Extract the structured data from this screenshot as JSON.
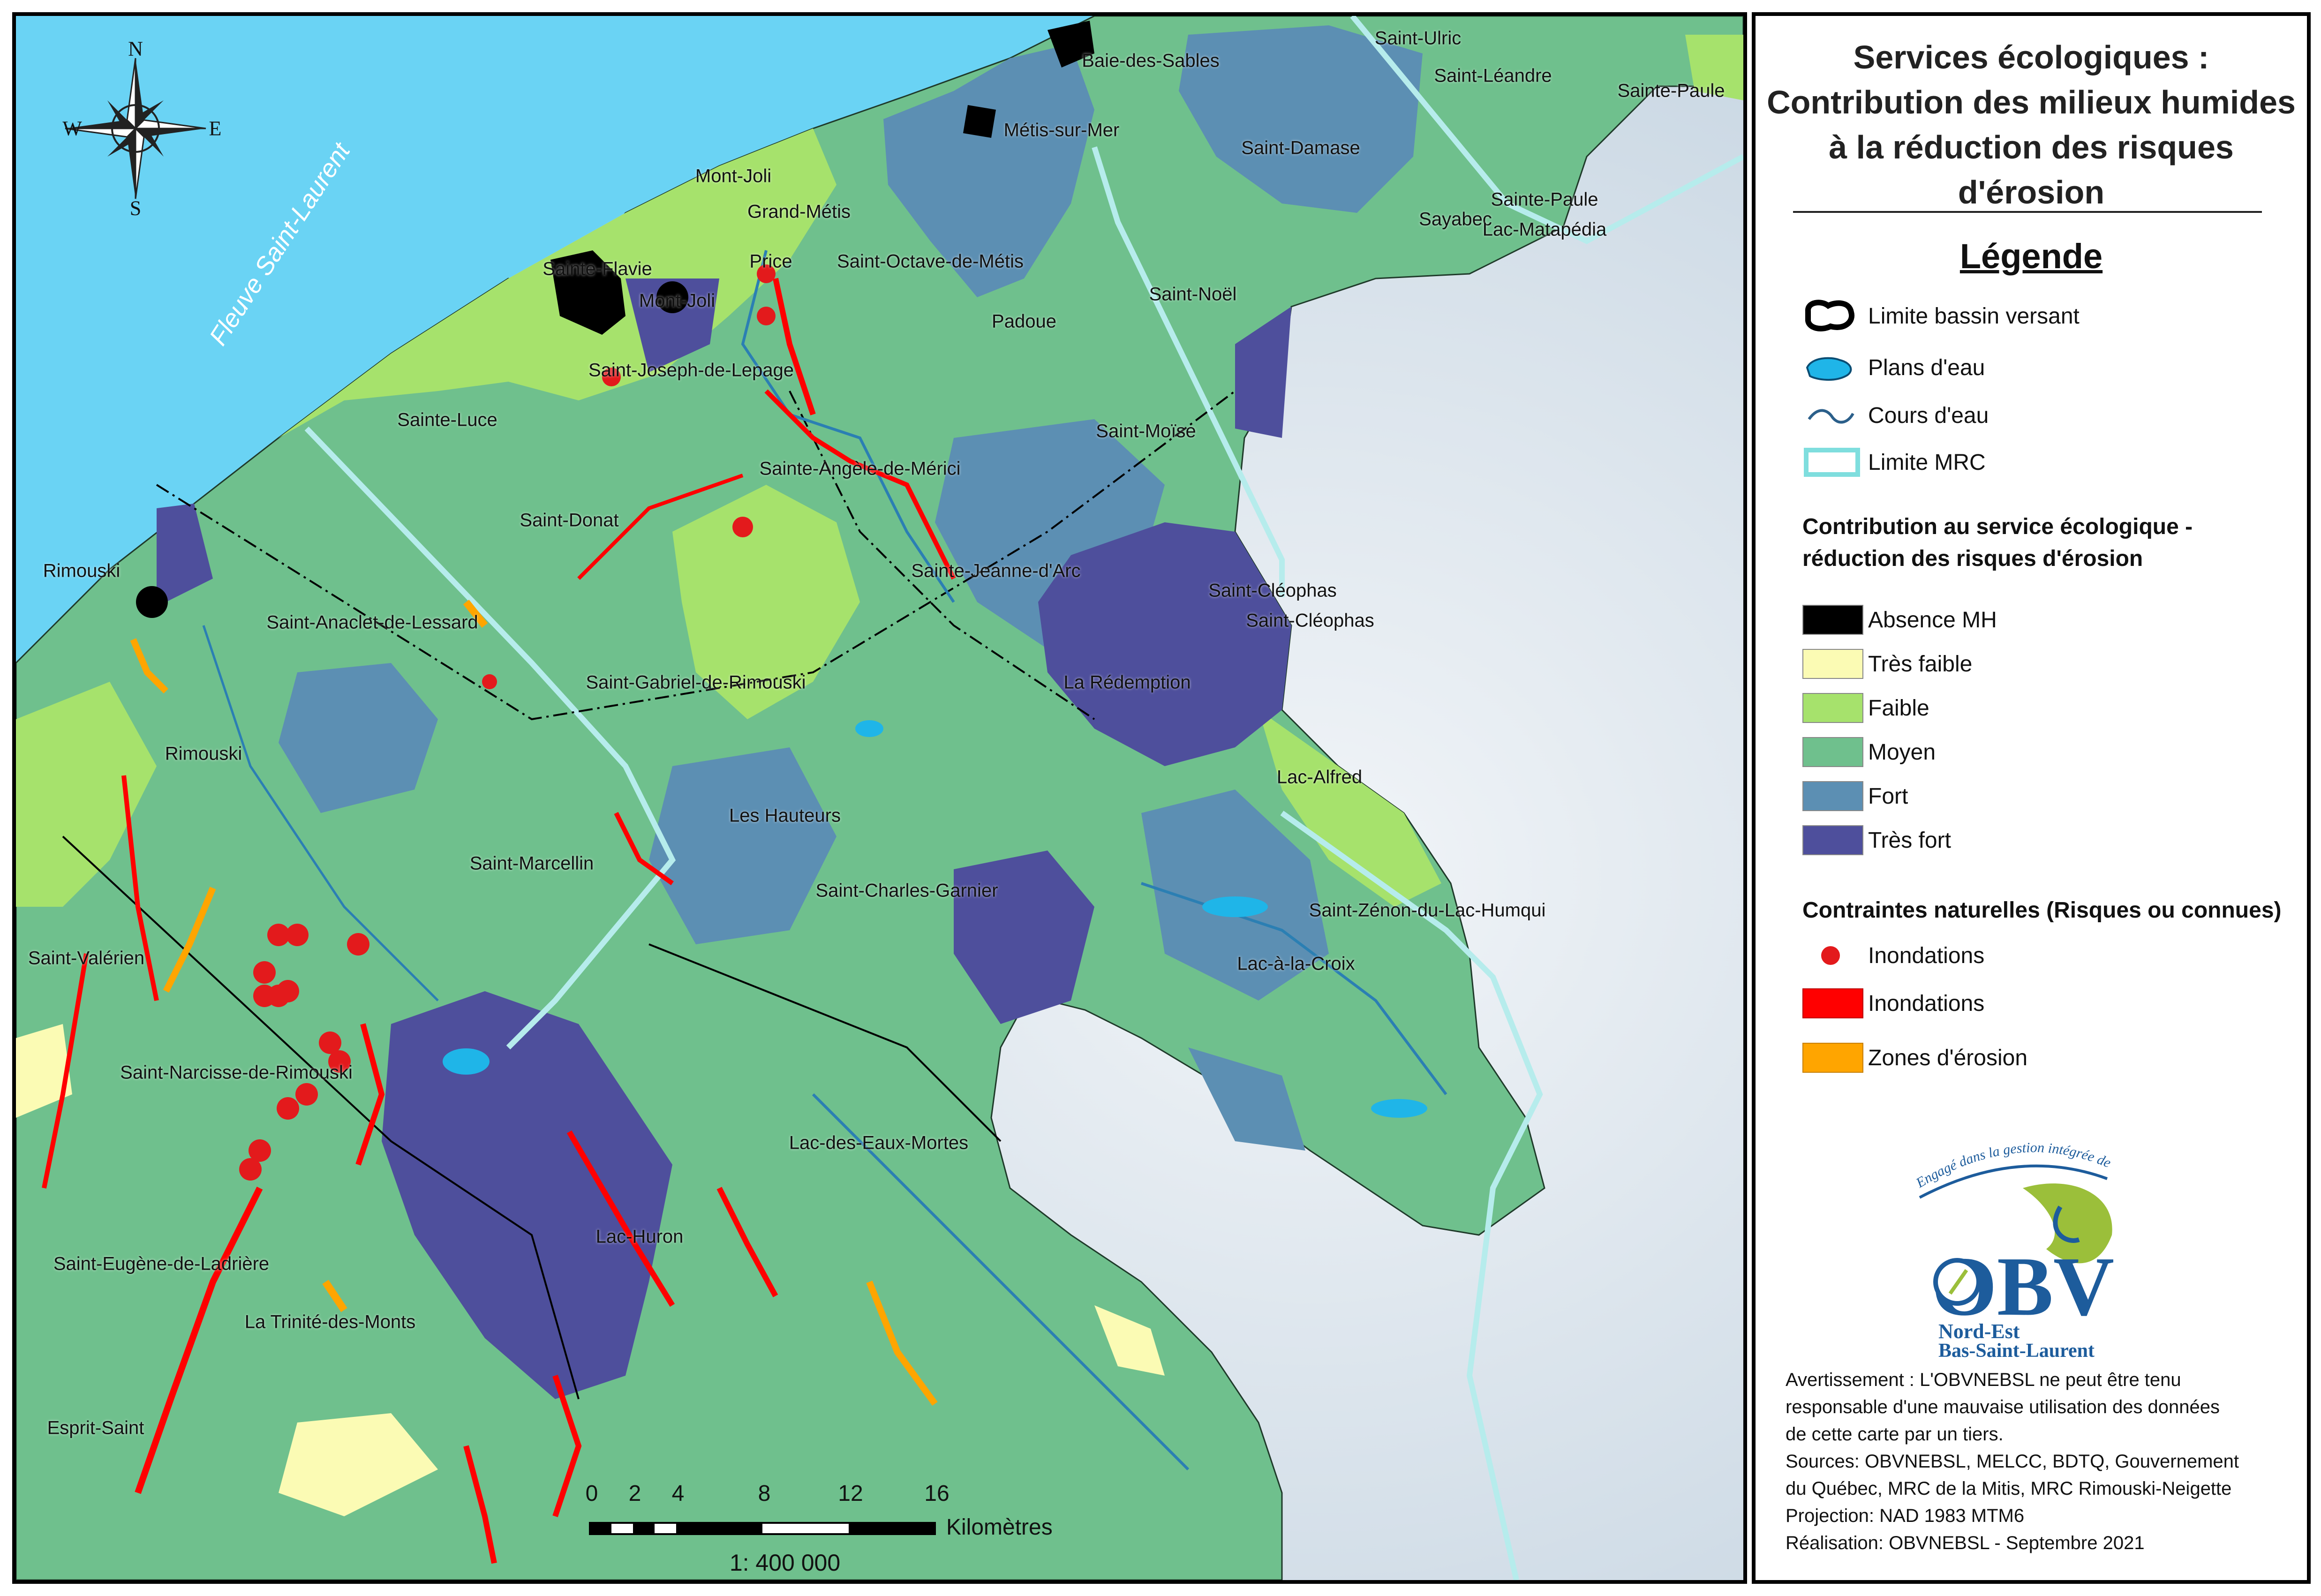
{
  "map": {
    "river_label": "Fleuve Saint-Laurent",
    "compass": {
      "n": "N",
      "s": "S",
      "e": "E",
      "w": "W"
    },
    "place_labels": [
      "Saint-Ulric",
      "Saint-Léandre",
      "Sainte-Paule",
      "Baie-des-Sables",
      "Métis-sur-Mer",
      "Saint-Damase",
      "Sainte-Paule",
      "Sayabec",
      "Lac-Matapédia",
      "Mont-Joli",
      "Grand-Métis",
      "Price",
      "Saint-Octave-de-Métis",
      "Sainte-Flavie",
      "Mont-Joli",
      "Saint-Noël",
      "Padoue",
      "Saint-Joseph-de-Lepage",
      "Sainte-Luce",
      "Saint-Moïse",
      "Sainte-Angèle-de-Mérici",
      "Saint-Donat",
      "Rimouski",
      "Sainte-Jeanne-d'Arc",
      "Saint-Cléophas",
      "Saint-Cléophas",
      "Saint-Anaclet-de-Lessard",
      "Saint-Gabriel-de-Rimouski",
      "La Rédemption",
      "Rimouski",
      "Lac-Alfred",
      "Les Hauteurs",
      "Saint-Marcellin",
      "Saint-Charles-Garnier",
      "Saint-Zénon-du-Lac-Humqui",
      "Saint-Valérien",
      "Lac-à-la-Croix",
      "Saint-Narcisse-de-Rimouski",
      "Lac-des-Eaux-Mortes",
      "Lac-Huron",
      "Saint-Eugène-de-Ladrière",
      "La Trinité-des-Monts",
      "Esprit-Saint"
    ],
    "scale": {
      "ticks": [
        "0",
        "2",
        "4",
        "8",
        "12",
        "16"
      ],
      "unit": "Kilomètres",
      "ratio": "1: 400 000"
    }
  },
  "legend": {
    "title_lines": [
      "Services écologiques :",
      "Contribution des milieux humides",
      "à la réduction des risques",
      "d'érosion"
    ],
    "heading": "Légende",
    "base_items": [
      {
        "label": "Limite bassin versant",
        "icon": "watershed-outline-icon"
      },
      {
        "label": "Plans d'eau",
        "icon": "water-body-icon"
      },
      {
        "label": "Cours d'eau",
        "icon": "watercourse-icon"
      },
      {
        "label": "Limite MRC",
        "icon": "mrc-boundary-icon"
      }
    ],
    "contribution_title_lines": [
      "Contribution au service écologique -",
      "réduction des risques d'érosion"
    ],
    "contribution_classes": [
      {
        "label": "Absence MH",
        "color": "#000000"
      },
      {
        "label": "Très faible",
        "color": "#fbfbb4"
      },
      {
        "label": "Faible",
        "color": "#a6e26c"
      },
      {
        "label": "Moyen",
        "color": "#6fc08d"
      },
      {
        "label": "Fort",
        "color": "#5c8fb3"
      },
      {
        "label": "Très fort",
        "color": "#4e4f9c"
      }
    ],
    "constraints_title": "Contraintes naturelles (Risques ou connues)",
    "constraints": [
      {
        "label": "Inondations",
        "color": "#e31a1c",
        "icon": "flood-point-icon"
      },
      {
        "label": "Inondations",
        "color": "#ff0000",
        "icon": "flood-zone-swatch"
      },
      {
        "label": "Zones d'érosion",
        "color": "#ffa500",
        "icon": "erosion-zone-swatch"
      }
    ],
    "logo": {
      "slogan": "Engagé dans la gestion intégrée de l'eau",
      "letters": "OBV",
      "line1": "Nord-Est",
      "line2": "Bas-Saint-Laurent"
    },
    "disclaimer_lines": [
      "Avertissement : L'OBVNEBSL ne peut être tenu",
      "responsable d'une mauvaise utilisation des données",
      "de cette carte par un tiers.",
      "Sources: OBVNEBSL, MELCC, BDTQ, Gouvernement",
      "du Québec, MRC de la Mitis, MRC Rimouski-Neigette",
      "Projection: NAD 1983 MTM6",
      "Réalisation: OBVNEBSL - Septembre 2021"
    ]
  }
}
